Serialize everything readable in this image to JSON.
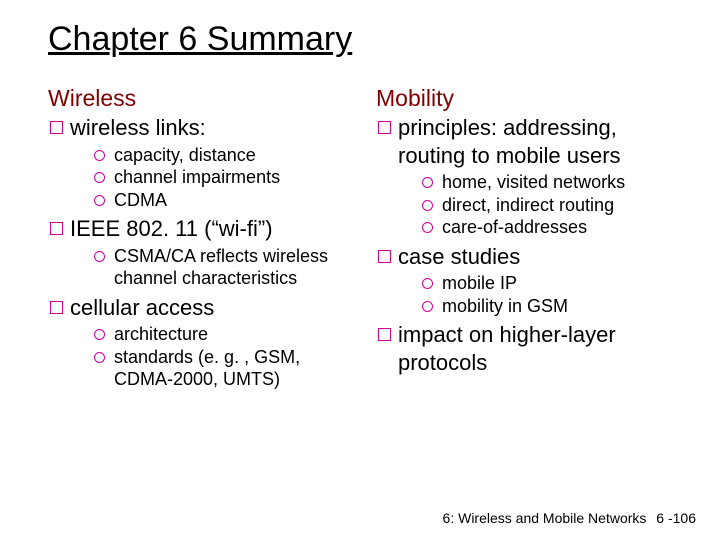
{
  "title": "Chapter 6 Summary",
  "colors": {
    "heading_left": "#800000",
    "heading_right": "#800000",
    "bullet_border": "#cc0099",
    "text": "#000000",
    "background": "#ffffff"
  },
  "fontsizes": {
    "title": 34,
    "section_heading": 23,
    "level1": 22,
    "level2": 18,
    "footer": 14
  },
  "left": {
    "heading": "Wireless",
    "items": [
      {
        "label": "wireless links:",
        "sub": [
          "capacity, distance",
          "channel impairments",
          "CDMA"
        ]
      },
      {
        "label": "IEEE 802. 11 (“wi-fi”)",
        "sub": [
          "CSMA/CA reflects wireless channel characteristics"
        ]
      },
      {
        "label": "cellular access",
        "sub": [
          "architecture",
          "standards (e. g. , GSM, CDMA-2000, UMTS)"
        ]
      }
    ]
  },
  "right": {
    "heading": "Mobility",
    "items": [
      {
        "label": "principles: addressing, routing to mobile users",
        "sub": [
          "home, visited networks",
          "direct, indirect routing",
          "care-of-addresses"
        ]
      },
      {
        "label": "case studies",
        "sub": [
          "mobile IP",
          "mobility in GSM"
        ]
      },
      {
        "label": "impact on higher-layer protocols",
        "sub": []
      }
    ]
  },
  "footer": {
    "text": "6: Wireless and Mobile Networks",
    "page": "6 -106"
  }
}
